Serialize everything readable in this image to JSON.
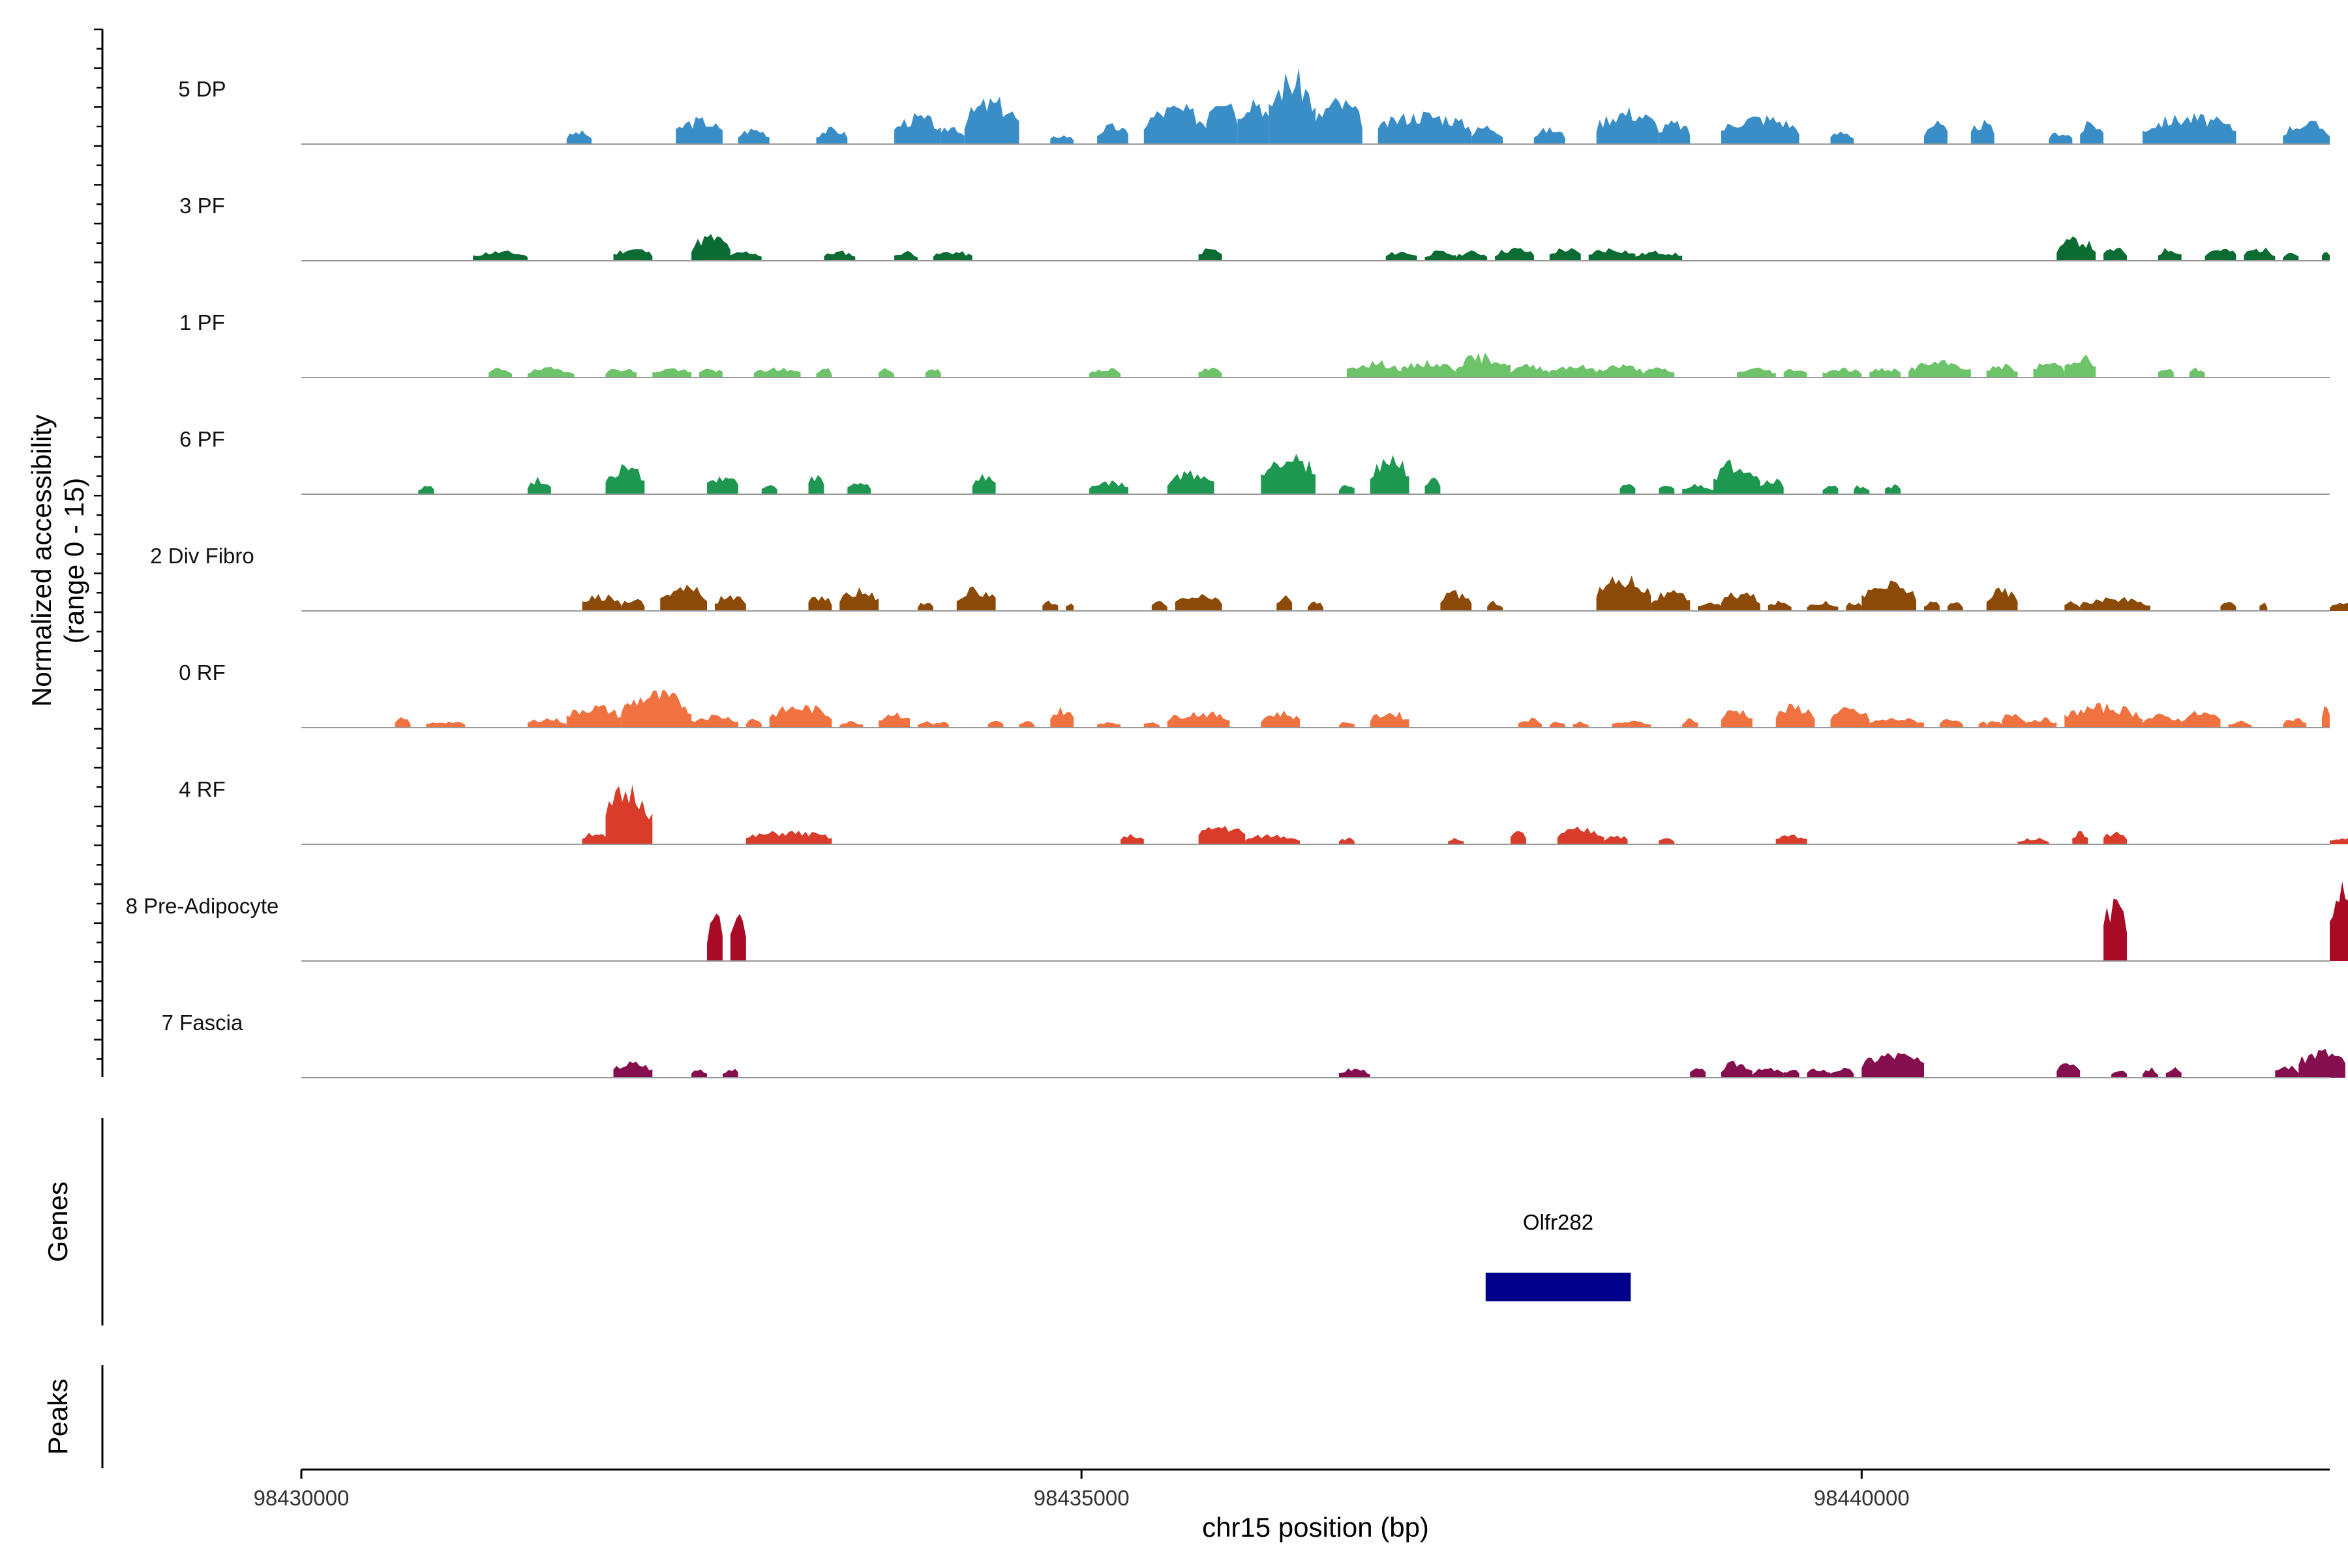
{
  "chart_data": {
    "type": "area",
    "title": "",
    "ylabel": "Normalized accessibility\n(range 0 - 15)",
    "xlabel": "chr15 position (bp)",
    "xlim": [
      98430000,
      98443000
    ],
    "ylim": [
      0,
      15
    ],
    "x_ticks": [
      98430000,
      98435000,
      98440000
    ],
    "x_tick_labels": [
      "98430000",
      "98435000",
      "98440000"
    ],
    "panel_labels": {
      "genes": "Genes",
      "peaks": "Peaks"
    },
    "genes": [
      {
        "name": "Olfr282",
        "start": 98437590,
        "end": 98438520,
        "color": "#00008b"
      }
    ],
    "series": [
      {
        "name": "5 DP",
        "color": "#3a8ec7",
        "seed": 3,
        "regions": [
          [
            98431700,
            98431860,
            2
          ],
          [
            98432400,
            98432700,
            4
          ],
          [
            98432800,
            98433000,
            2.5
          ],
          [
            98433300,
            98433500,
            2.5
          ],
          [
            98433800,
            98434100,
            4.5
          ],
          [
            98434100,
            98434250,
            3
          ],
          [
            98434250,
            98434600,
            7
          ],
          [
            98434800,
            98434950,
            1.5
          ],
          [
            98435100,
            98435300,
            3
          ],
          [
            98435400,
            98435800,
            6
          ],
          [
            98435800,
            98436000,
            9
          ],
          [
            98436000,
            98436200,
            8
          ],
          [
            98436200,
            98436500,
            11
          ],
          [
            98436500,
            98436800,
            7
          ],
          [
            98436900,
            98437500,
            5
          ],
          [
            98437500,
            98437700,
            3
          ],
          [
            98437900,
            98438100,
            2.5
          ],
          [
            98438300,
            98438700,
            5.5
          ],
          [
            98438700,
            98438900,
            3.5
          ],
          [
            98439100,
            98439600,
            4.5
          ],
          [
            98439800,
            98439950,
            2
          ],
          [
            98440400,
            98440550,
            3.5
          ],
          [
            98440700,
            98440850,
            3.5
          ],
          [
            98441200,
            98441350,
            2
          ],
          [
            98441400,
            98441550,
            3.5
          ],
          [
            98441800,
            98442400,
            4.5
          ],
          [
            98442700,
            98443000,
            3.5
          ]
        ]
      },
      {
        "name": "3 PF",
        "color": "#0a6b33",
        "seed": 11,
        "regions": [
          [
            98431100,
            98431450,
            1.5
          ],
          [
            98432000,
            98432250,
            2
          ],
          [
            98432500,
            98432750,
            4
          ],
          [
            98432750,
            98432950,
            1.5
          ],
          [
            98433350,
            98433550,
            1.5
          ],
          [
            98433800,
            98433950,
            1.5
          ],
          [
            98434050,
            98434300,
            1.5
          ],
          [
            98435750,
            98435900,
            2
          ],
          [
            98436950,
            98437150,
            1.5
          ],
          [
            98437200,
            98437400,
            1.5
          ],
          [
            98437400,
            98437600,
            1.5
          ],
          [
            98437650,
            98437900,
            2
          ],
          [
            98438000,
            98438200,
            2
          ],
          [
            98438250,
            98438550,
            2
          ],
          [
            98438550,
            98438850,
            1.5
          ],
          [
            98441250,
            98441500,
            3.5
          ],
          [
            98441550,
            98441700,
            2
          ],
          [
            98441900,
            98442050,
            2
          ],
          [
            98442200,
            98442400,
            2
          ],
          [
            98442450,
            98442650,
            2
          ],
          [
            98442700,
            98442800,
            1.5
          ],
          [
            98442950,
            98443000,
            1.5
          ]
        ]
      },
      {
        "name": "1 PF",
        "color": "#6cc36a",
        "seed": 19,
        "regions": [
          [
            98431200,
            98431350,
            1.5
          ],
          [
            98431450,
            98431750,
            1.5
          ],
          [
            98431950,
            98432150,
            1.5
          ],
          [
            98432250,
            98432500,
            1.5
          ],
          [
            98432550,
            98432700,
            1.5
          ],
          [
            98432900,
            98433200,
            1.5
          ],
          [
            98433300,
            98433400,
            1.5
          ],
          [
            98433700,
            98433800,
            1.5
          ],
          [
            98434000,
            98434100,
            1.5
          ],
          [
            98435050,
            98435250,
            1.5
          ],
          [
            98435750,
            98435900,
            1.5
          ],
          [
            98436700,
            98437050,
            2.5
          ],
          [
            98437050,
            98437400,
            2.5
          ],
          [
            98437400,
            98437750,
            3.5
          ],
          [
            98437750,
            98438000,
            2
          ],
          [
            98438000,
            98438300,
            2
          ],
          [
            98438300,
            98438600,
            2
          ],
          [
            98438600,
            98438800,
            1.5
          ],
          [
            98439200,
            98439450,
            1.5
          ],
          [
            98439500,
            98439650,
            1.5
          ],
          [
            98439750,
            98440000,
            1.5
          ],
          [
            98440050,
            98440250,
            1.5
          ],
          [
            98440300,
            98440700,
            2.5
          ],
          [
            98440800,
            98441000,
            2
          ],
          [
            98441100,
            98441300,
            2.5
          ],
          [
            98441300,
            98441500,
            3.5
          ],
          [
            98441900,
            98442000,
            1.5
          ],
          [
            98442100,
            98442200,
            1.5
          ]
        ]
      },
      {
        "name": "6 PF",
        "color": "#1e9850",
        "seed": 27,
        "regions": [
          [
            98430750,
            98430850,
            1.5
          ],
          [
            98431450,
            98431600,
            2.5
          ],
          [
            98431950,
            98432200,
            4.5
          ],
          [
            98432600,
            98432800,
            3
          ],
          [
            98432950,
            98433050,
            1.5
          ],
          [
            98433250,
            98433350,
            3
          ],
          [
            98433500,
            98433650,
            2
          ],
          [
            98434300,
            98434450,
            3
          ],
          [
            98435050,
            98435300,
            2
          ],
          [
            98435550,
            98435850,
            3.5
          ],
          [
            98436150,
            98436500,
            6.5
          ],
          [
            98436650,
            98436750,
            1.5
          ],
          [
            98436850,
            98437100,
            6
          ],
          [
            98437200,
            98437300,
            3
          ],
          [
            98438450,
            98438550,
            1.5
          ],
          [
            98438700,
            98438800,
            1.5
          ],
          [
            98438850,
            98439050,
            1.5
          ],
          [
            98439050,
            98439350,
            5
          ],
          [
            98439350,
            98439500,
            2.5
          ],
          [
            98439750,
            98439850,
            1.5
          ],
          [
            98439950,
            98440050,
            1.5
          ],
          [
            98440150,
            98440250,
            1.5
          ]
        ]
      },
      {
        "name": "2 Div Fibro",
        "color": "#8b4a07",
        "seed": 35,
        "regions": [
          [
            98431800,
            98432050,
            2.5
          ],
          [
            98432050,
            98432200,
            2
          ],
          [
            98432300,
            98432600,
            4
          ],
          [
            98432650,
            98432850,
            2.5
          ],
          [
            98433250,
            98433400,
            2.5
          ],
          [
            98433450,
            98433700,
            3.5
          ],
          [
            98433950,
            98434050,
            1.5
          ],
          [
            98434200,
            98434450,
            3.5
          ],
          [
            98434750,
            98434850,
            1.5
          ],
          [
            98434900,
            98434950,
            1.5
          ],
          [
            98435450,
            98435550,
            1.5
          ],
          [
            98435600,
            98435900,
            2.5
          ],
          [
            98436250,
            98436350,
            2.5
          ],
          [
            98436450,
            98436550,
            1.5
          ],
          [
            98437300,
            98437500,
            3
          ],
          [
            98437600,
            98437700,
            1.5
          ],
          [
            98438300,
            98438650,
            5.5
          ],
          [
            98438650,
            98438900,
            3
          ],
          [
            98438950,
            98439100,
            1.5
          ],
          [
            98439100,
            98439350,
            3
          ],
          [
            98439400,
            98439550,
            1.5
          ],
          [
            98439650,
            98439850,
            1.5
          ],
          [
            98439900,
            98440000,
            1.5
          ],
          [
            98440000,
            98440350,
            4.5
          ],
          [
            98440400,
            98440500,
            1.5
          ],
          [
            98440550,
            98440650,
            1.5
          ],
          [
            98440800,
            98441000,
            3.5
          ],
          [
            98441300,
            98441400,
            1.5
          ],
          [
            98441400,
            98441850,
            2
          ],
          [
            98442300,
            98442400,
            1.5
          ],
          [
            98442550,
            98442600,
            1.5
          ],
          [
            98443000,
            98443150,
            1.5
          ]
        ]
      },
      {
        "name": "0 RF",
        "color": "#f07241",
        "seed": 43,
        "regions": [
          [
            98430600,
            98430700,
            1.5
          ],
          [
            98430800,
            98431050,
            1
          ],
          [
            98431450,
            98431700,
            1.5
          ],
          [
            98431700,
            98432050,
            3.5
          ],
          [
            98432050,
            98432500,
            5.5
          ],
          [
            98432500,
            98432800,
            2
          ],
          [
            98432850,
            98432950,
            1.5
          ],
          [
            98433000,
            98433400,
            3.5
          ],
          [
            98433450,
            98433600,
            1
          ],
          [
            98433700,
            98433900,
            2.5
          ],
          [
            98433950,
            98434050,
            1
          ],
          [
            98434050,
            98434150,
            1
          ],
          [
            98434400,
            98434500,
            1
          ],
          [
            98434600,
            98434700,
            1
          ],
          [
            98434800,
            98434950,
            3
          ],
          [
            98435100,
            98435250,
            1
          ],
          [
            98435400,
            98435500,
            1
          ],
          [
            98435550,
            98435950,
            2.5
          ],
          [
            98436150,
            98436400,
            2.5
          ],
          [
            98436650,
            98436750,
            1
          ],
          [
            98436850,
            98437100,
            2.5
          ],
          [
            98437800,
            98437950,
            1.5
          ],
          [
            98438000,
            98438100,
            1
          ],
          [
            98438150,
            98438250,
            1
          ],
          [
            98438400,
            98438650,
            1
          ],
          [
            98438850,
            98438950,
            1.5
          ],
          [
            98439100,
            98439300,
            3
          ],
          [
            98439450,
            98439700,
            3.5
          ],
          [
            98439800,
            98440050,
            3
          ],
          [
            98440050,
            98440400,
            1.5
          ],
          [
            98440500,
            98440650,
            1.5
          ],
          [
            98440750,
            98440800,
            1
          ],
          [
            98440800,
            98440900,
            1
          ],
          [
            98440900,
            98441050,
            2.5
          ],
          [
            98441050,
            98441250,
            1.5
          ],
          [
            98441300,
            98441800,
            3.5
          ],
          [
            98441800,
            98442050,
            2
          ],
          [
            98442050,
            98442300,
            2.5
          ],
          [
            98442350,
            98442500,
            1
          ],
          [
            98442700,
            98442850,
            1.5
          ],
          [
            98442950,
            98443000,
            3.5
          ]
        ]
      },
      {
        "name": "4 RF",
        "color": "#d93c2b",
        "seed": 51,
        "regions": [
          [
            98431800,
            98431950,
            2
          ],
          [
            98431950,
            98432250,
            9
          ],
          [
            98432850,
            98433400,
            2
          ],
          [
            98435250,
            98435400,
            1.5
          ],
          [
            98435750,
            98436050,
            3
          ],
          [
            98436050,
            98436400,
            1.5
          ],
          [
            98436650,
            98436750,
            1
          ],
          [
            98437350,
            98437450,
            1
          ],
          [
            98437750,
            98437850,
            2
          ],
          [
            98438050,
            98438350,
            2.5
          ],
          [
            98438350,
            98438500,
            1.5
          ],
          [
            98438700,
            98438800,
            1
          ],
          [
            98439450,
            98439650,
            1.5
          ],
          [
            98441000,
            98441200,
            1
          ],
          [
            98441350,
            98441450,
            2
          ],
          [
            98441550,
            98441700,
            2
          ],
          [
            98443000,
            98443200,
            1
          ]
        ]
      },
      {
        "name": "8 Pre-Adipocyte",
        "color": "#a80b26",
        "seed": 59,
        "regions": [
          [
            98432600,
            98432700,
            8
          ],
          [
            98432750,
            98432850,
            8
          ],
          [
            98441550,
            98441700,
            10
          ],
          [
            98443000,
            98443200,
            13
          ]
        ]
      },
      {
        "name": "7 Fascia",
        "color": "#850e4f",
        "seed": 67,
        "regions": [
          [
            98432000,
            98432250,
            2.5
          ],
          [
            98432500,
            98432600,
            1.5
          ],
          [
            98432700,
            98432800,
            1.5
          ],
          [
            98436650,
            98436850,
            1.5
          ],
          [
            98438900,
            98439000,
            1.5
          ],
          [
            98439100,
            98439300,
            2.5
          ],
          [
            98439300,
            98439500,
            1.5
          ],
          [
            98439500,
            98439600,
            1.5
          ],
          [
            98439650,
            98439800,
            1.5
          ],
          [
            98439800,
            98439950,
            1.5
          ],
          [
            98440000,
            98440400,
            4
          ],
          [
            98441250,
            98441400,
            3
          ],
          [
            98441600,
            98441700,
            1.5
          ],
          [
            98441800,
            98441900,
            1.5
          ],
          [
            98441950,
            98442050,
            1.5
          ],
          [
            98442650,
            98442800,
            2
          ],
          [
            98442800,
            98443100,
            4.5
          ]
        ]
      }
    ]
  }
}
